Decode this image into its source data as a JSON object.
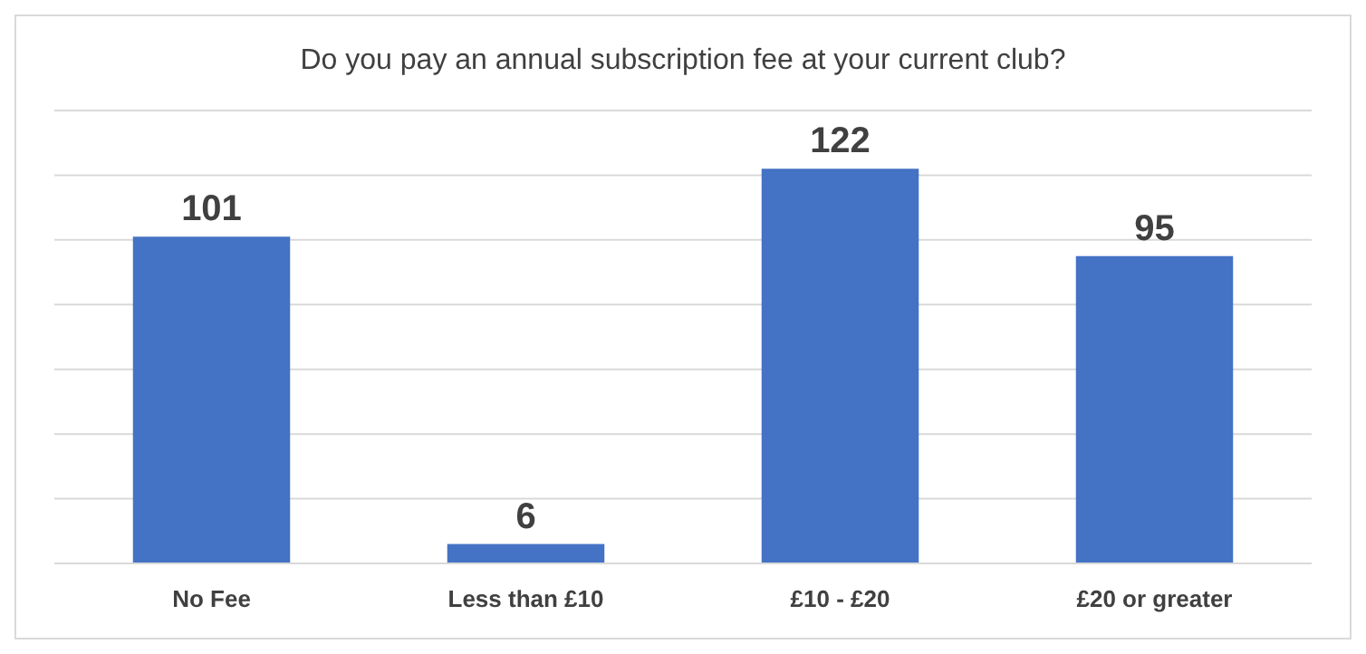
{
  "chart_data": {
    "type": "bar",
    "title": "Do you pay an annual subscription fee at your current club?",
    "categories": [
      "No Fee",
      "Less than £10",
      "£10 - £20",
      "£20 or greater"
    ],
    "values": [
      101,
      6,
      122,
      95
    ],
    "color": "#4472c4",
    "ylim": [
      0,
      140
    ],
    "yticks": [
      {
        "value": 0,
        "label": null
      },
      {
        "value": 20,
        "label": null
      },
      {
        "value": 40,
        "label": null
      },
      {
        "value": 60,
        "label": null
      },
      {
        "value": 80,
        "label": null
      },
      {
        "value": 100,
        "label": null
      },
      {
        "value": 120,
        "label": null
      },
      {
        "value": 140,
        "label": null
      }
    ],
    "grid": "y",
    "tick_labels": "x",
    "data_labels": true
  }
}
